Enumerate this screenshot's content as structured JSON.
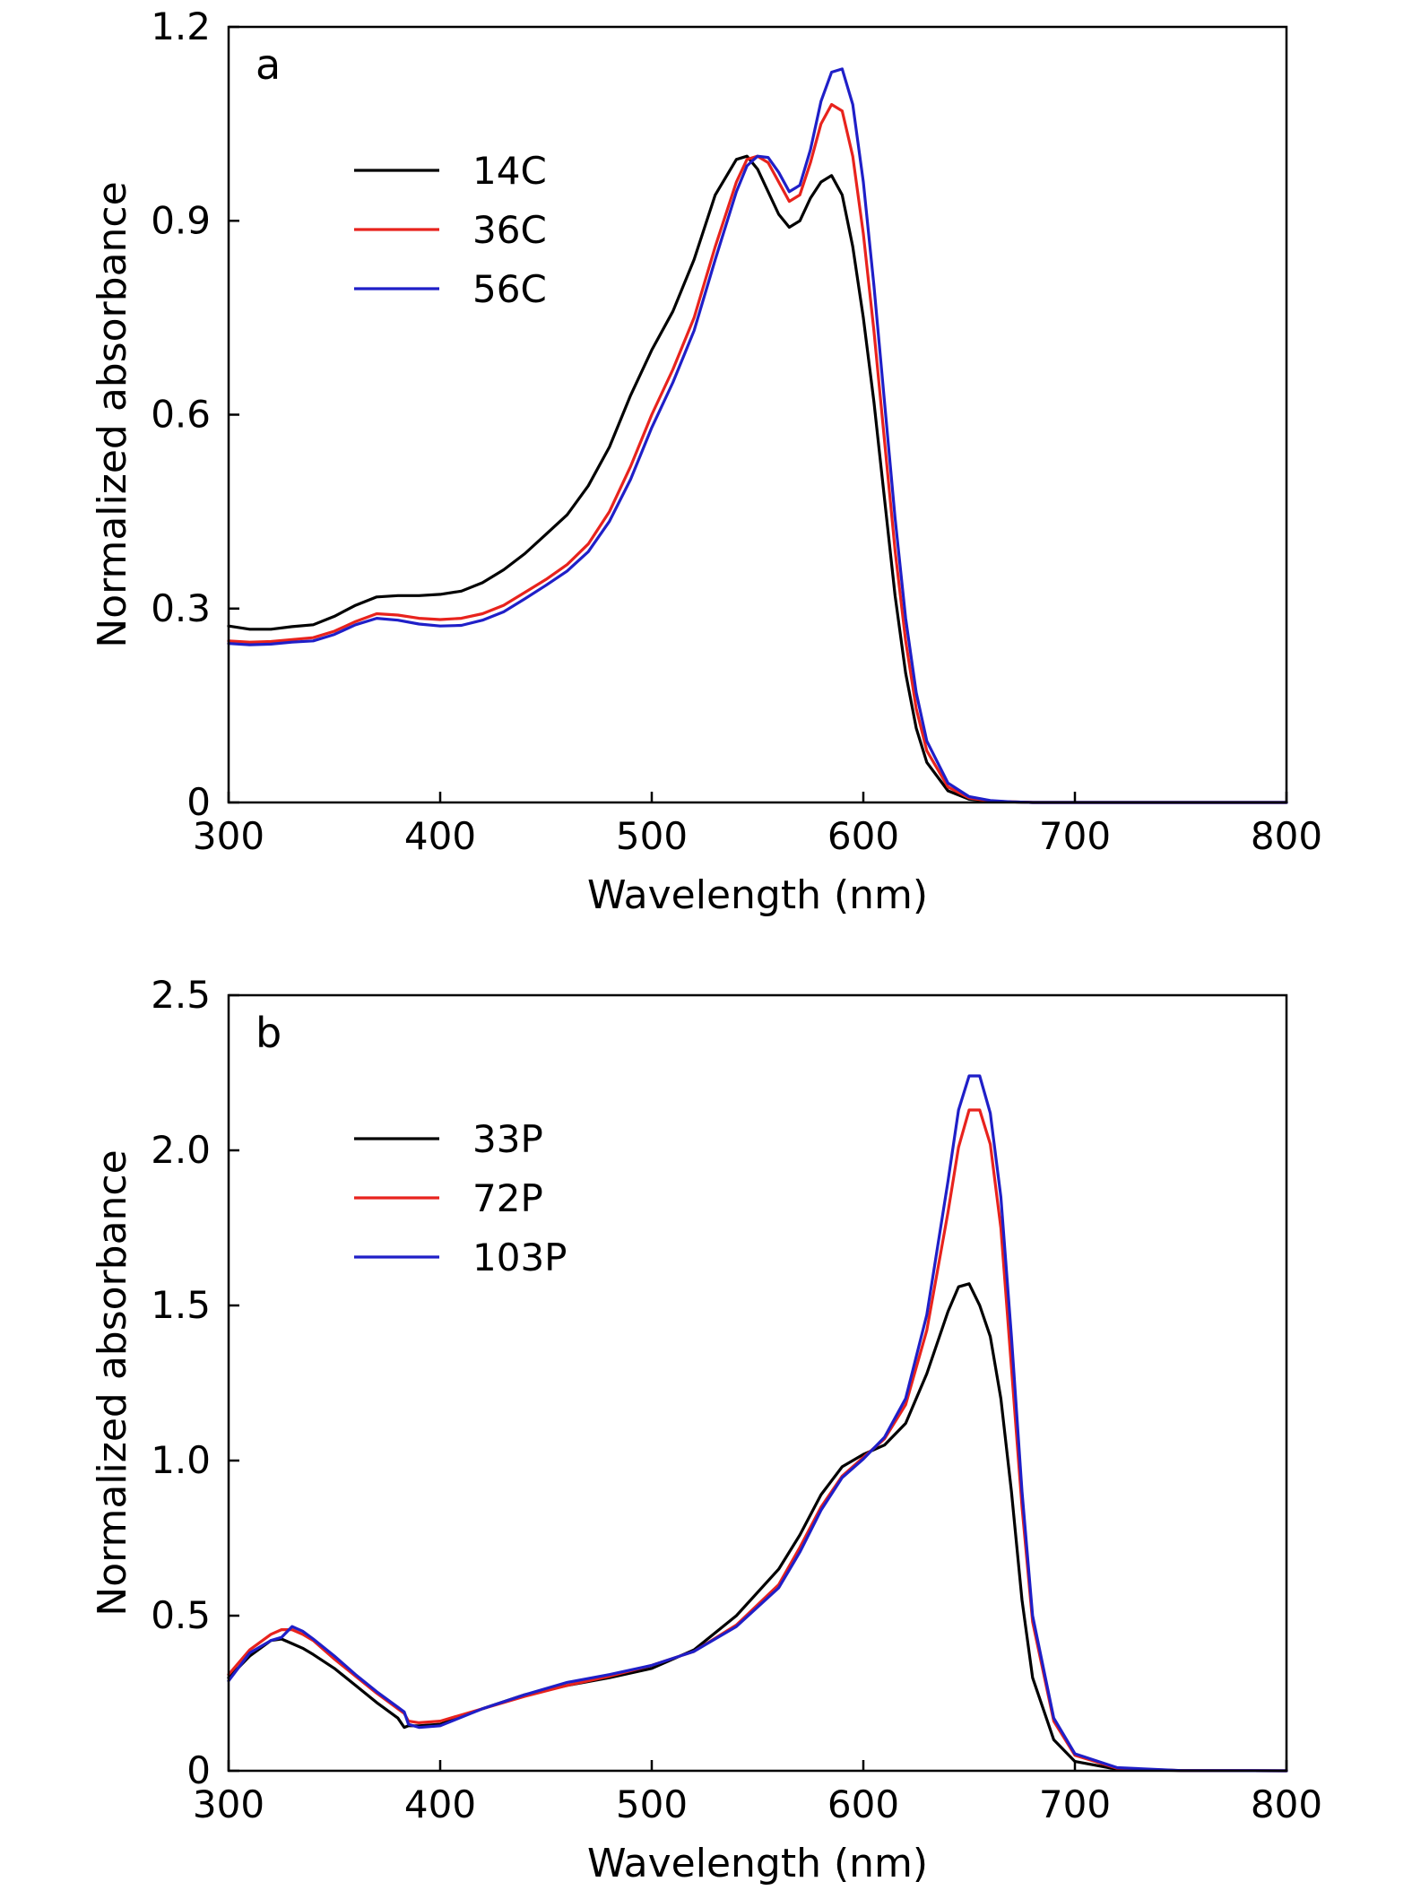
{
  "chart_data": [
    {
      "type": "line",
      "panel_label": "a",
      "xlabel": "Wavelength (nm)",
      "ylabel": "Normalized absorbance",
      "xlim": [
        300,
        800
      ],
      "ylim": [
        0,
        1.2
      ],
      "xticks": [
        300,
        400,
        500,
        600,
        700,
        800
      ],
      "xtick_labels": [
        "300",
        "400",
        "500",
        "600",
        "700",
        "800"
      ],
      "yticks": [
        0,
        0.3,
        0.6,
        0.9,
        1.2
      ],
      "ytick_labels": [
        "0",
        "0.3",
        "0.6",
        "0.9",
        "1.2"
      ],
      "legend_position": "upper-left",
      "grid": false,
      "series": [
        {
          "name": "14C",
          "color": "#000000",
          "x": [
            300,
            310,
            320,
            330,
            340,
            350,
            360,
            370,
            380,
            390,
            400,
            410,
            420,
            430,
            440,
            450,
            460,
            470,
            480,
            490,
            500,
            510,
            520,
            530,
            540,
            545,
            550,
            555,
            560,
            565,
            570,
            575,
            580,
            585,
            590,
            595,
            600,
            605,
            610,
            615,
            620,
            625,
            630,
            640,
            650,
            660,
            670,
            680,
            700,
            750,
            800
          ],
          "y": [
            0.273,
            0.268,
            0.268,
            0.272,
            0.275,
            0.288,
            0.305,
            0.318,
            0.32,
            0.32,
            0.322,
            0.327,
            0.34,
            0.36,
            0.385,
            0.415,
            0.445,
            0.49,
            0.55,
            0.63,
            0.7,
            0.76,
            0.84,
            0.94,
            0.995,
            1.0,
            0.98,
            0.945,
            0.91,
            0.89,
            0.9,
            0.935,
            0.96,
            0.97,
            0.94,
            0.86,
            0.75,
            0.62,
            0.47,
            0.32,
            0.2,
            0.115,
            0.062,
            0.018,
            0.005,
            0.002,
            0.001,
            0.0,
            0.0,
            0.0,
            0.0
          ]
        },
        {
          "name": "36C",
          "color": "#e8231d",
          "x": [
            300,
            310,
            320,
            330,
            340,
            350,
            360,
            370,
            380,
            390,
            400,
            410,
            420,
            430,
            440,
            450,
            460,
            470,
            480,
            490,
            500,
            510,
            520,
            530,
            540,
            545,
            550,
            555,
            560,
            565,
            570,
            575,
            580,
            585,
            590,
            595,
            600,
            605,
            610,
            615,
            620,
            625,
            630,
            640,
            650,
            660,
            670,
            680,
            700,
            750,
            800
          ],
          "y": [
            0.25,
            0.248,
            0.249,
            0.252,
            0.255,
            0.265,
            0.28,
            0.292,
            0.29,
            0.285,
            0.283,
            0.285,
            0.292,
            0.305,
            0.325,
            0.345,
            0.368,
            0.4,
            0.45,
            0.52,
            0.6,
            0.67,
            0.75,
            0.86,
            0.96,
            0.995,
            1.0,
            0.99,
            0.96,
            0.93,
            0.94,
            0.99,
            1.05,
            1.08,
            1.07,
            1.0,
            0.88,
            0.73,
            0.56,
            0.39,
            0.25,
            0.145,
            0.08,
            0.024,
            0.007,
            0.002,
            0.001,
            0.0,
            0.0,
            0.0,
            0.0
          ]
        },
        {
          "name": "56C",
          "color": "#1f1fc8",
          "x": [
            300,
            310,
            320,
            330,
            340,
            350,
            360,
            370,
            380,
            390,
            400,
            410,
            420,
            430,
            440,
            450,
            460,
            470,
            480,
            490,
            500,
            510,
            520,
            530,
            540,
            545,
            550,
            555,
            560,
            565,
            570,
            575,
            580,
            585,
            590,
            595,
            600,
            605,
            610,
            615,
            620,
            625,
            630,
            640,
            650,
            660,
            670,
            680,
            700,
            750,
            800
          ],
          "y": [
            0.246,
            0.244,
            0.245,
            0.248,
            0.25,
            0.26,
            0.275,
            0.285,
            0.282,
            0.276,
            0.273,
            0.274,
            0.282,
            0.295,
            0.315,
            0.336,
            0.358,
            0.388,
            0.435,
            0.5,
            0.58,
            0.65,
            0.73,
            0.84,
            0.945,
            0.985,
            1.0,
            0.998,
            0.975,
            0.945,
            0.955,
            1.01,
            1.085,
            1.13,
            1.135,
            1.08,
            0.96,
            0.8,
            0.62,
            0.44,
            0.285,
            0.17,
            0.095,
            0.03,
            0.009,
            0.003,
            0.001,
            0.0,
            0.0,
            0.0,
            0.0
          ]
        }
      ]
    },
    {
      "type": "line",
      "panel_label": "b",
      "xlabel": "Wavelength (nm)",
      "ylabel": "Normalized absorbance",
      "xlim": [
        300,
        800
      ],
      "ylim": [
        0,
        2.5
      ],
      "xticks": [
        300,
        400,
        500,
        600,
        700,
        800
      ],
      "xtick_labels": [
        "300",
        "400",
        "500",
        "600",
        "700",
        "800"
      ],
      "yticks": [
        0,
        0.5,
        1.0,
        1.5,
        2.0,
        2.5
      ],
      "ytick_labels": [
        "0",
        "0.5",
        "1.0",
        "1.5",
        "2.0",
        "2.5"
      ],
      "legend_position": "upper-left",
      "grid": false,
      "series": [
        {
          "name": "33P",
          "color": "#000000",
          "x": [
            300,
            310,
            320,
            325,
            330,
            335,
            340,
            350,
            360,
            370,
            380,
            383,
            385,
            390,
            400,
            420,
            440,
            460,
            480,
            500,
            520,
            540,
            560,
            570,
            580,
            590,
            600,
            610,
            620,
            630,
            640,
            645,
            650,
            655,
            660,
            665,
            670,
            675,
            680,
            690,
            700,
            720,
            750,
            800
          ],
          "y": [
            0.3,
            0.37,
            0.42,
            0.425,
            0.41,
            0.395,
            0.375,
            0.33,
            0.275,
            0.22,
            0.17,
            0.14,
            0.145,
            0.145,
            0.15,
            0.2,
            0.245,
            0.275,
            0.3,
            0.33,
            0.39,
            0.5,
            0.65,
            0.76,
            0.89,
            0.98,
            1.02,
            1.05,
            1.12,
            1.28,
            1.48,
            1.56,
            1.57,
            1.5,
            1.4,
            1.2,
            0.9,
            0.55,
            0.3,
            0.1,
            0.03,
            0.005,
            0.001,
            0.0
          ]
        },
        {
          "name": "72P",
          "color": "#e8231d",
          "x": [
            300,
            310,
            320,
            325,
            330,
            335,
            340,
            350,
            360,
            370,
            380,
            383,
            385,
            390,
            400,
            420,
            440,
            460,
            480,
            500,
            520,
            540,
            560,
            570,
            580,
            590,
            600,
            610,
            620,
            630,
            640,
            645,
            650,
            655,
            660,
            665,
            670,
            675,
            680,
            690,
            700,
            720,
            750,
            800
          ],
          "y": [
            0.31,
            0.39,
            0.44,
            0.455,
            0.455,
            0.44,
            0.42,
            0.36,
            0.305,
            0.25,
            0.2,
            0.185,
            0.16,
            0.155,
            0.16,
            0.2,
            0.24,
            0.275,
            0.305,
            0.34,
            0.385,
            0.47,
            0.6,
            0.72,
            0.85,
            0.95,
            1.01,
            1.07,
            1.18,
            1.42,
            1.8,
            2.01,
            2.13,
            2.13,
            2.02,
            1.75,
            1.3,
            0.85,
            0.48,
            0.16,
            0.05,
            0.008,
            0.001,
            0.0
          ]
        },
        {
          "name": "103P",
          "color": "#1f1fc8",
          "x": [
            300,
            310,
            320,
            325,
            330,
            335,
            340,
            350,
            360,
            370,
            380,
            383,
            385,
            390,
            400,
            420,
            440,
            460,
            480,
            500,
            520,
            540,
            560,
            570,
            580,
            590,
            600,
            610,
            620,
            630,
            640,
            645,
            650,
            655,
            660,
            665,
            670,
            675,
            680,
            690,
            700,
            720,
            750,
            800
          ],
          "y": [
            0.29,
            0.38,
            0.42,
            0.43,
            0.465,
            0.45,
            0.425,
            0.37,
            0.31,
            0.255,
            0.205,
            0.19,
            0.15,
            0.14,
            0.145,
            0.2,
            0.245,
            0.285,
            0.31,
            0.34,
            0.385,
            0.465,
            0.59,
            0.705,
            0.84,
            0.945,
            1.005,
            1.075,
            1.2,
            1.47,
            1.9,
            2.13,
            2.24,
            2.24,
            2.12,
            1.85,
            1.4,
            0.9,
            0.5,
            0.17,
            0.055,
            0.01,
            0.001,
            0.0
          ]
        }
      ]
    }
  ]
}
